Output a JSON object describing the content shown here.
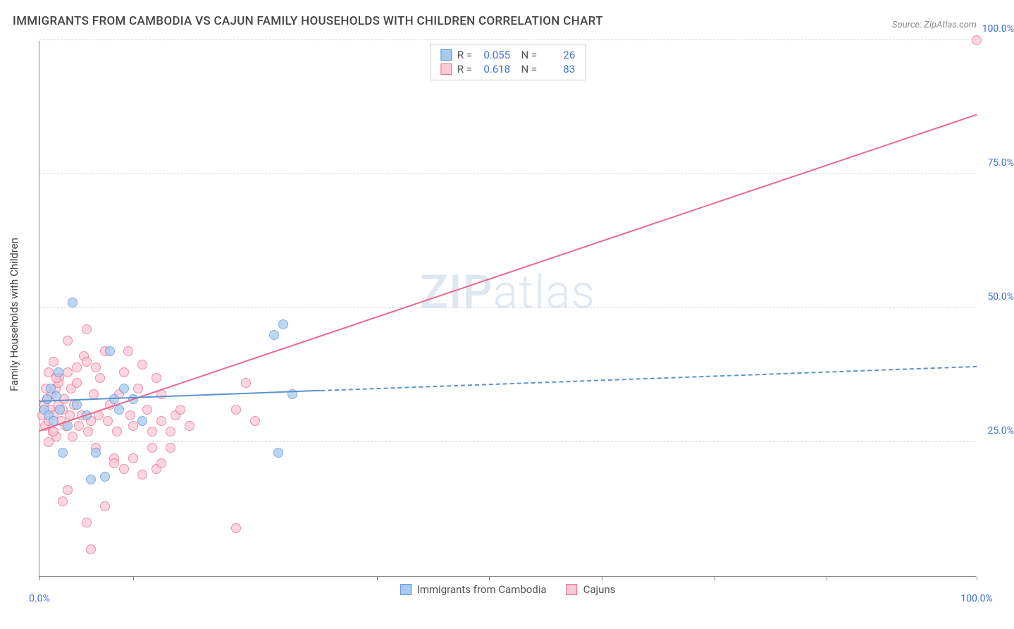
{
  "title": "IMMIGRANTS FROM CAMBODIA VS CAJUN FAMILY HOUSEHOLDS WITH CHILDREN CORRELATION CHART",
  "source": "Source: ZipAtlas.com",
  "watermark_a": "ZIP",
  "watermark_b": "atlas",
  "yaxis_title": "Family Households with Children",
  "colors": {
    "blue_fill": "#a8caef",
    "blue_stroke": "#5b92d3",
    "pink_fill": "#fcc9d6",
    "pink_stroke": "#e86a8e",
    "tick_blue": "#3b6fd6",
    "grid": "#d8d8d8"
  },
  "xlim": [
    0,
    100
  ],
  "ylim": [
    0,
    100
  ],
  "yticks": [
    {
      "v": 25,
      "label": "25.0%"
    },
    {
      "v": 50,
      "label": "50.0%"
    },
    {
      "v": 75,
      "label": "75.0%"
    },
    {
      "v": 100,
      "label": "100.0%"
    }
  ],
  "xticks_major": [
    0,
    100
  ],
  "xtick_labels": {
    "0": "0.0%",
    "100": "100.0%"
  },
  "xticks_minor": [
    10,
    36,
    48,
    60,
    72,
    84
  ],
  "legend_top": [
    {
      "swatch": "blue",
      "r_label": "R =",
      "r_val": "0.055",
      "n_label": "N =",
      "n_val": "26"
    },
    {
      "swatch": "pink",
      "r_label": "R =",
      "r_val": "0.618",
      "n_label": "N =",
      "n_val": "83"
    }
  ],
  "legend_bottom": [
    {
      "swatch": "blue",
      "label": "Immigrants from Cambodia"
    },
    {
      "swatch": "pink",
      "label": "Cajuns"
    }
  ],
  "series": {
    "blue": {
      "trend_solid": {
        "x1": 0,
        "y1": 32.5,
        "x2": 30,
        "y2": 34.5
      },
      "trend_dash": {
        "x1": 30,
        "y1": 34.5,
        "x2": 100,
        "y2": 39
      },
      "points": [
        [
          0.5,
          31
        ],
        [
          0.8,
          33
        ],
        [
          1,
          30
        ],
        [
          1.2,
          35
        ],
        [
          1.5,
          29
        ],
        [
          1.8,
          33.5
        ],
        [
          2,
          38
        ],
        [
          2.2,
          31
        ],
        [
          2.5,
          23
        ],
        [
          3,
          28
        ],
        [
          3.5,
          51
        ],
        [
          4,
          32
        ],
        [
          5,
          30
        ],
        [
          5.5,
          18
        ],
        [
          6,
          23
        ],
        [
          7,
          18.5
        ],
        [
          7.5,
          42
        ],
        [
          8,
          33
        ],
        [
          8.5,
          31
        ],
        [
          9,
          35
        ],
        [
          10,
          33
        ],
        [
          11,
          29
        ],
        [
          25,
          45
        ],
        [
          25.5,
          23
        ],
        [
          26,
          47
        ],
        [
          27,
          34
        ]
      ]
    },
    "pink": {
      "trend_solid": {
        "x1": 0,
        "y1": 27,
        "x2": 100,
        "y2": 86
      },
      "points": [
        [
          0.3,
          30
        ],
        [
          0.5,
          32
        ],
        [
          0.6,
          28
        ],
        [
          0.8,
          33
        ],
        [
          1,
          29
        ],
        [
          1.1,
          31
        ],
        [
          1.3,
          34
        ],
        [
          1.4,
          27
        ],
        [
          1.5,
          30
        ],
        [
          1.7,
          35
        ],
        [
          1.8,
          26
        ],
        [
          2,
          32
        ],
        [
          2.1,
          37
        ],
        [
          2.3,
          29
        ],
        [
          2.5,
          31
        ],
        [
          2.6,
          33
        ],
        [
          2.8,
          28
        ],
        [
          3,
          44
        ],
        [
          3.2,
          30
        ],
        [
          3.4,
          35
        ],
        [
          3.5,
          26
        ],
        [
          3.7,
          32
        ],
        [
          4,
          39
        ],
        [
          4.2,
          28
        ],
        [
          4.5,
          30
        ],
        [
          4.7,
          41
        ],
        [
          5,
          46
        ],
        [
          5.2,
          27
        ],
        [
          5.5,
          29
        ],
        [
          5.8,
          34
        ],
        [
          6,
          24
        ],
        [
          6.3,
          30
        ],
        [
          6.5,
          37
        ],
        [
          7,
          42
        ],
        [
          7.3,
          29
        ],
        [
          7.5,
          32
        ],
        [
          8,
          22
        ],
        [
          8.3,
          27
        ],
        [
          8.5,
          34
        ],
        [
          9,
          38
        ],
        [
          9.5,
          42
        ],
        [
          9.7,
          30
        ],
        [
          10,
          28
        ],
        [
          10.5,
          35
        ],
        [
          11,
          39.5
        ],
        [
          11.5,
          31
        ],
        [
          12,
          27
        ],
        [
          12.5,
          37
        ],
        [
          13,
          29
        ],
        [
          2.5,
          14
        ],
        [
          3,
          16
        ],
        [
          5,
          10
        ],
        [
          5.5,
          5
        ],
        [
          7,
          13
        ],
        [
          8,
          21
        ],
        [
          9,
          20
        ],
        [
          10,
          22
        ],
        [
          11,
          19
        ],
        [
          12,
          24
        ],
        [
          12.5,
          20
        ],
        [
          13,
          21
        ],
        [
          14,
          24
        ],
        [
          14.5,
          30
        ],
        [
          13,
          34
        ],
        [
          14,
          27
        ],
        [
          15,
          31
        ],
        [
          16,
          28
        ],
        [
          21,
          9
        ],
        [
          21,
          31
        ],
        [
          22,
          36
        ],
        [
          23,
          29
        ],
        [
          1,
          38
        ],
        [
          1.5,
          40
        ],
        [
          2,
          36
        ],
        [
          0.7,
          35
        ],
        [
          1.8,
          37
        ],
        [
          3,
          38
        ],
        [
          4,
          36
        ],
        [
          5,
          40
        ],
        [
          6,
          39
        ],
        [
          100,
          100
        ],
        [
          1,
          25
        ],
        [
          1.5,
          27
        ]
      ]
    }
  }
}
